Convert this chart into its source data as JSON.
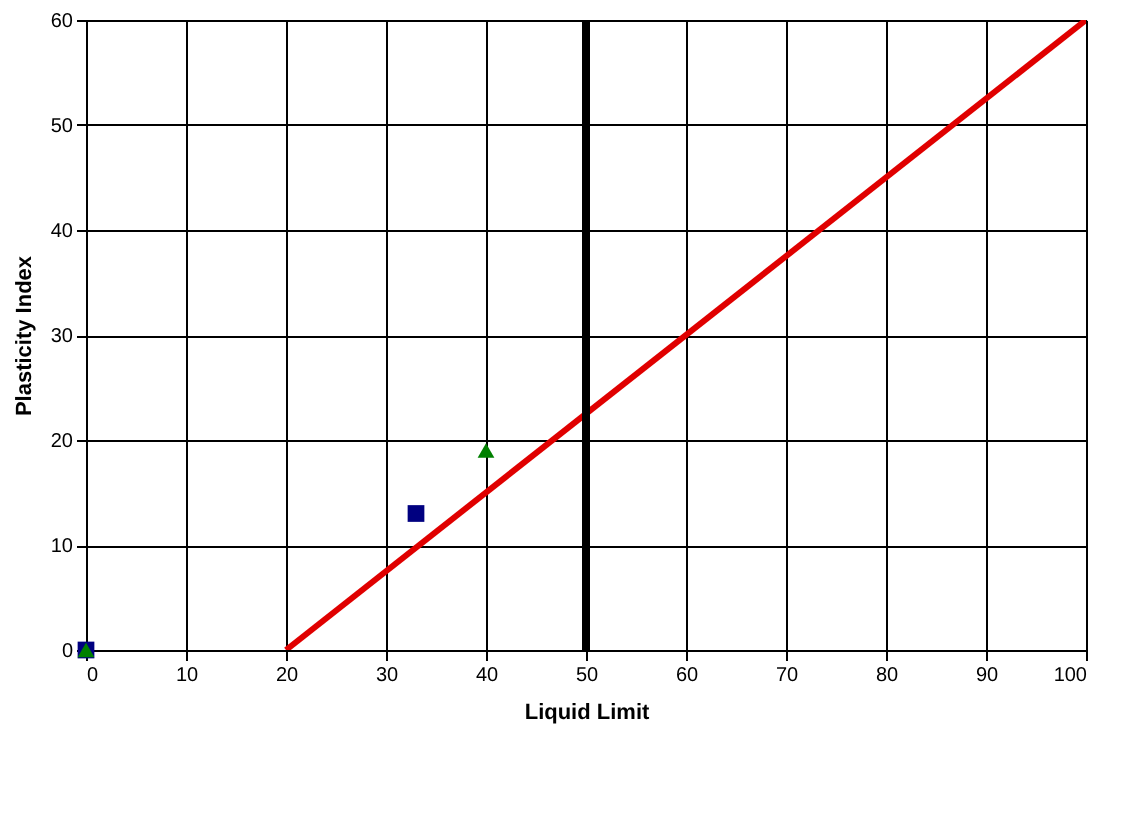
{
  "chart_data": {
    "type": "scatter",
    "xlabel": "Liquid Limit",
    "ylabel": "Plasticity Index",
    "xlim": [
      0,
      100
    ],
    "ylim": [
      0,
      60
    ],
    "xticks": [
      0,
      10,
      20,
      30,
      40,
      50,
      60,
      70,
      80,
      90,
      100
    ],
    "yticks": [
      0,
      10,
      20,
      30,
      40,
      50,
      60
    ],
    "grid": true,
    "series": [
      {
        "type": "line",
        "color": "#e00000",
        "x": [
          20,
          100
        ],
        "values": [
          0,
          60
        ],
        "marker": "none",
        "line_style": "solid"
      },
      {
        "color": "#000080",
        "x": [
          0,
          33
        ],
        "values": [
          0,
          13
        ],
        "marker": "square"
      },
      {
        "color": "#008000",
        "x": [
          0,
          40
        ],
        "values": [
          0,
          19
        ],
        "marker": "triangle"
      }
    ],
    "ref_lines": [
      {
        "axis": "x",
        "value": 50,
        "color": "#000000",
        "line_style": "solid"
      }
    ]
  }
}
